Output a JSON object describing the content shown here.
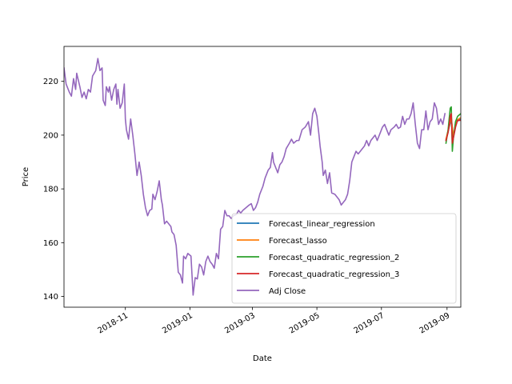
{
  "chart_data": {
    "type": "line",
    "title": "",
    "xlabel": "Date",
    "ylabel": "Price",
    "xlim": [
      "2018-09-04",
      "2019-09-14"
    ],
    "ylim": [
      136,
      233
    ],
    "x_ticks": [
      {
        "label": "2018-11",
        "date": "2018-11-01"
      },
      {
        "label": "2019-01",
        "date": "2019-01-01"
      },
      {
        "label": "2019-03",
        "date": "2019-03-01"
      },
      {
        "label": "2019-05",
        "date": "2019-05-01"
      },
      {
        "label": "2019-07",
        "date": "2019-07-01"
      },
      {
        "label": "2019-09",
        "date": "2019-09-01"
      }
    ],
    "y_ticks": [
      140,
      160,
      180,
      200,
      220
    ],
    "grid": false,
    "legend_position": "lower-right",
    "series": [
      {
        "name": "Forecast_linear_regression",
        "color": "#1f77b4",
        "points": [
          [
            "2019-08-31",
            198.0
          ],
          [
            "2019-09-03",
            203.0
          ],
          [
            "2019-09-05",
            206.0
          ],
          [
            "2019-09-07",
            199.0
          ],
          [
            "2019-09-10",
            205.0
          ],
          [
            "2019-09-14",
            206.0
          ]
        ]
      },
      {
        "name": "Forecast_lasso",
        "color": "#ff7f0e",
        "points": [
          [
            "2019-08-31",
            198.5
          ],
          [
            "2019-09-03",
            203.5
          ],
          [
            "2019-09-05",
            206.5
          ],
          [
            "2019-09-07",
            199.5
          ],
          [
            "2019-09-10",
            205.5
          ],
          [
            "2019-09-14",
            206.5
          ]
        ]
      },
      {
        "name": "Forecast_quadratic_regression_2",
        "color": "#2ca02c",
        "points": [
          [
            "2019-08-31",
            197.0
          ],
          [
            "2019-09-02",
            202.0
          ],
          [
            "2019-09-03",
            206.0
          ],
          [
            "2019-09-04",
            210.0
          ],
          [
            "2019-09-05",
            210.5
          ],
          [
            "2019-09-06",
            194.0
          ],
          [
            "2019-09-07",
            199.0
          ],
          [
            "2019-09-09",
            205.0
          ],
          [
            "2019-09-11",
            207.0
          ],
          [
            "2019-09-14",
            208.0
          ]
        ]
      },
      {
        "name": "Forecast_quadratic_regression_3",
        "color": "#d62728",
        "points": [
          [
            "2019-08-31",
            198.0
          ],
          [
            "2019-09-02",
            201.0
          ],
          [
            "2019-09-03",
            203.5
          ],
          [
            "2019-09-04",
            207.0
          ],
          [
            "2019-09-05",
            208.0
          ],
          [
            "2019-09-06",
            197.0
          ],
          [
            "2019-09-07",
            199.0
          ],
          [
            "2019-09-09",
            203.0
          ],
          [
            "2019-09-11",
            205.5
          ],
          [
            "2019-09-14",
            205.5
          ]
        ]
      },
      {
        "name": "Adj Close",
        "color": "#9467bd",
        "points": [
          [
            "2018-09-04",
            225.0
          ],
          [
            "2018-09-06",
            219.0
          ],
          [
            "2018-09-09",
            216.0
          ],
          [
            "2018-09-11",
            214.5
          ],
          [
            "2018-09-13",
            221.0
          ],
          [
            "2018-09-15",
            217.0
          ],
          [
            "2018-09-16",
            223.0
          ],
          [
            "2018-09-19",
            218.0
          ],
          [
            "2018-09-21",
            214.0
          ],
          [
            "2018-09-23",
            216.0
          ],
          [
            "2018-09-25",
            213.5
          ],
          [
            "2018-09-27",
            217.0
          ],
          [
            "2018-09-29",
            216.0
          ],
          [
            "2018-10-01",
            222.0
          ],
          [
            "2018-10-04",
            224.0
          ],
          [
            "2018-10-06",
            228.5
          ],
          [
            "2018-10-08",
            224.0
          ],
          [
            "2018-10-10",
            225.0
          ],
          [
            "2018-10-11",
            213.0
          ],
          [
            "2018-10-13",
            211.0
          ],
          [
            "2018-10-14",
            218.0
          ],
          [
            "2018-10-16",
            216.0
          ],
          [
            "2018-10-17",
            218.0
          ],
          [
            "2018-10-19",
            213.0
          ],
          [
            "2018-10-21",
            217.0
          ],
          [
            "2018-10-23",
            219.0
          ],
          [
            "2018-10-24",
            211.5
          ],
          [
            "2018-10-25",
            217.0
          ],
          [
            "2018-10-27",
            210.0
          ],
          [
            "2018-10-29",
            212.0
          ],
          [
            "2018-10-31",
            219.0
          ],
          [
            "2018-11-01",
            206.0
          ],
          [
            "2018-11-02",
            202.0
          ],
          [
            "2018-11-04",
            198.5
          ],
          [
            "2018-11-06",
            206.0
          ],
          [
            "2018-11-08",
            200.0
          ],
          [
            "2018-11-10",
            193.0
          ],
          [
            "2018-11-12",
            185.0
          ],
          [
            "2018-11-14",
            190.0
          ],
          [
            "2018-11-16",
            185.0
          ],
          [
            "2018-11-18",
            178.0
          ],
          [
            "2018-11-20",
            173.0
          ],
          [
            "2018-11-22",
            170.0
          ],
          [
            "2018-11-24",
            172.0
          ],
          [
            "2018-11-26",
            172.5
          ],
          [
            "2018-11-27",
            178.0
          ],
          [
            "2018-11-29",
            176.0
          ],
          [
            "2018-12-01",
            179.0
          ],
          [
            "2018-12-03",
            183.0
          ],
          [
            "2018-12-05",
            176.0
          ],
          [
            "2018-12-06",
            174.0
          ],
          [
            "2018-12-08",
            167.0
          ],
          [
            "2018-12-10",
            168.0
          ],
          [
            "2018-12-12",
            167.0
          ],
          [
            "2018-12-14",
            166.0
          ],
          [
            "2018-12-15",
            164.0
          ],
          [
            "2018-12-17",
            163.0
          ],
          [
            "2018-12-19",
            159.0
          ],
          [
            "2018-12-21",
            149.0
          ],
          [
            "2018-12-23",
            148.0
          ],
          [
            "2018-12-25",
            145.0
          ],
          [
            "2018-12-26",
            155.0
          ],
          [
            "2018-12-28",
            154.0
          ],
          [
            "2018-12-30",
            156.0
          ],
          [
            "2019-01-02",
            155.0
          ],
          [
            "2019-01-04",
            140.5
          ],
          [
            "2019-01-06",
            147.0
          ],
          [
            "2019-01-08",
            146.5
          ],
          [
            "2019-01-10",
            152.0
          ],
          [
            "2019-01-12",
            151.0
          ],
          [
            "2019-01-14",
            148.0
          ],
          [
            "2019-01-16",
            153.0
          ],
          [
            "2019-01-18",
            155.0
          ],
          [
            "2019-01-20",
            153.0
          ],
          [
            "2019-01-22",
            152.0
          ],
          [
            "2019-01-24",
            150.5
          ],
          [
            "2019-01-26",
            156.0
          ],
          [
            "2019-01-28",
            154.0
          ],
          [
            "2019-01-30",
            165.0
          ],
          [
            "2019-02-01",
            166.0
          ],
          [
            "2019-02-03",
            172.0
          ],
          [
            "2019-02-05",
            170.0
          ],
          [
            "2019-02-07",
            170.0
          ],
          [
            "2019-02-09",
            169.0
          ],
          [
            "2019-02-11",
            170.0
          ],
          [
            "2019-02-14",
            170.5
          ],
          [
            "2019-02-16",
            172.0
          ],
          [
            "2019-02-18",
            171.0
          ],
          [
            "2019-02-20",
            172.0
          ],
          [
            "2019-02-23",
            173.0
          ],
          [
            "2019-02-26",
            174.0
          ],
          [
            "2019-02-28",
            174.5
          ],
          [
            "2019-03-02",
            172.0
          ],
          [
            "2019-03-04",
            173.0
          ],
          [
            "2019-03-06",
            175.0
          ],
          [
            "2019-03-08",
            178.0
          ],
          [
            "2019-03-11",
            181.0
          ],
          [
            "2019-03-13",
            184.0
          ],
          [
            "2019-03-16",
            187.0
          ],
          [
            "2019-03-18",
            188.0
          ],
          [
            "2019-03-20",
            193.5
          ],
          [
            "2019-03-21",
            190.0
          ],
          [
            "2019-03-23",
            188.0
          ],
          [
            "2019-03-25",
            186.0
          ],
          [
            "2019-03-27",
            189.0
          ],
          [
            "2019-03-29",
            190.0
          ],
          [
            "2019-03-31",
            192.0
          ],
          [
            "2019-04-02",
            195.0
          ],
          [
            "2019-04-05",
            197.0
          ],
          [
            "2019-04-07",
            198.5
          ],
          [
            "2019-04-09",
            197.0
          ],
          [
            "2019-04-12",
            198.0
          ],
          [
            "2019-04-14",
            198.0
          ],
          [
            "2019-04-17",
            202.0
          ],
          [
            "2019-04-20",
            203.0
          ],
          [
            "2019-04-23",
            205.0
          ],
          [
            "2019-04-25",
            200.0
          ],
          [
            "2019-04-27",
            208.0
          ],
          [
            "2019-04-29",
            210.0
          ],
          [
            "2019-05-01",
            207.0
          ],
          [
            "2019-05-03",
            200.0
          ],
          [
            "2019-05-04",
            196.0
          ],
          [
            "2019-05-06",
            190.0
          ],
          [
            "2019-05-07",
            185.0
          ],
          [
            "2019-05-09",
            187.0
          ],
          [
            "2019-05-11",
            182.0
          ],
          [
            "2019-05-13",
            186.0
          ],
          [
            "2019-05-15",
            178.5
          ],
          [
            "2019-05-18",
            178.0
          ],
          [
            "2019-05-20",
            177.0
          ],
          [
            "2019-05-22",
            176.0
          ],
          [
            "2019-05-24",
            174.0
          ],
          [
            "2019-05-26",
            175.0
          ],
          [
            "2019-05-28",
            176.0
          ],
          [
            "2019-05-30",
            178.0
          ],
          [
            "2019-06-01",
            183.0
          ],
          [
            "2019-06-03",
            190.0
          ],
          [
            "2019-06-05",
            192.0
          ],
          [
            "2019-06-07",
            194.0
          ],
          [
            "2019-06-09",
            193.0
          ],
          [
            "2019-06-11",
            194.0
          ],
          [
            "2019-06-13",
            195.0
          ],
          [
            "2019-06-15",
            196.0
          ],
          [
            "2019-06-17",
            198.0
          ],
          [
            "2019-06-19",
            196.0
          ],
          [
            "2019-06-21",
            198.0
          ],
          [
            "2019-06-23",
            199.0
          ],
          [
            "2019-06-25",
            200.0
          ],
          [
            "2019-06-27",
            198.0
          ],
          [
            "2019-06-30",
            201.0
          ],
          [
            "2019-07-02",
            203.0
          ],
          [
            "2019-07-04",
            204.0
          ],
          [
            "2019-07-06",
            202.0
          ],
          [
            "2019-07-08",
            200.0
          ],
          [
            "2019-07-10",
            202.0
          ],
          [
            "2019-07-13",
            203.0
          ],
          [
            "2019-07-15",
            204.0
          ],
          [
            "2019-07-17",
            202.5
          ],
          [
            "2019-07-19",
            203.0
          ],
          [
            "2019-07-21",
            207.0
          ],
          [
            "2019-07-23",
            204.0
          ],
          [
            "2019-07-25",
            206.0
          ],
          [
            "2019-07-27",
            206.0
          ],
          [
            "2019-07-29",
            208.0
          ],
          [
            "2019-07-31",
            212.0
          ],
          [
            "2019-08-02",
            204.0
          ],
          [
            "2019-08-04",
            197.0
          ],
          [
            "2019-08-06",
            195.0
          ],
          [
            "2019-08-08",
            202.0
          ],
          [
            "2019-08-10",
            202.0
          ],
          [
            "2019-08-12",
            209.0
          ],
          [
            "2019-08-14",
            202.0
          ],
          [
            "2019-08-16",
            205.0
          ],
          [
            "2019-08-18",
            206.0
          ],
          [
            "2019-08-20",
            212.0
          ],
          [
            "2019-08-22",
            210.0
          ],
          [
            "2019-08-24",
            204.0
          ],
          [
            "2019-08-26",
            206.0
          ],
          [
            "2019-08-28",
            204.0
          ],
          [
            "2019-08-30",
            208.0
          ]
        ]
      }
    ]
  }
}
